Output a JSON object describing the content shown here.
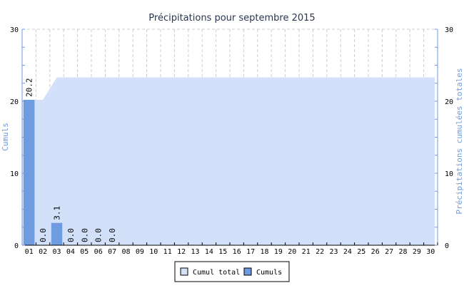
{
  "chart_data": {
    "type": "bar",
    "title": "Précipitations pour septembre 2015",
    "ylabel_left": "Cumuls",
    "ylabel_right": "Précipitations cumulées totales",
    "ylim": [
      0,
      30
    ],
    "yticks": [
      0,
      10,
      20,
      30
    ],
    "grid": true,
    "legend_placement": "bottom",
    "categories": [
      "01",
      "02",
      "03",
      "04",
      "05",
      "06",
      "07",
      "08",
      "09",
      "10",
      "11",
      "12",
      "13",
      "14",
      "15",
      "16",
      "17",
      "18",
      "19",
      "20",
      "21",
      "22",
      "23",
      "24",
      "25",
      "26",
      "27",
      "28",
      "29",
      "30"
    ],
    "series": [
      {
        "name": "Cumul total",
        "type": "area",
        "color": "#d3e0f9",
        "values": [
          20.2,
          20.2,
          23.3,
          23.3,
          23.3,
          23.3,
          23.3,
          23.3,
          23.3,
          23.3,
          23.3,
          23.3,
          23.3,
          23.3,
          23.3,
          23.3,
          23.3,
          23.3,
          23.3,
          23.3,
          23.3,
          23.3,
          23.3,
          23.3,
          23.3,
          23.3,
          23.3,
          23.3,
          23.3,
          23.3
        ]
      },
      {
        "name": "Cumuls",
        "type": "bar",
        "color": "#6f9be0",
        "values": [
          20.2,
          0.0,
          3.1,
          0.0,
          0.0,
          0.0,
          0.0,
          null,
          null,
          null,
          null,
          null,
          null,
          null,
          null,
          null,
          null,
          null,
          null,
          null,
          null,
          null,
          null,
          null,
          null,
          null,
          null,
          null,
          null,
          null
        ],
        "labels": [
          "20.2",
          "0.0",
          "3.1",
          "0.0",
          "0.0",
          "0.0",
          "0.0"
        ]
      }
    ]
  }
}
